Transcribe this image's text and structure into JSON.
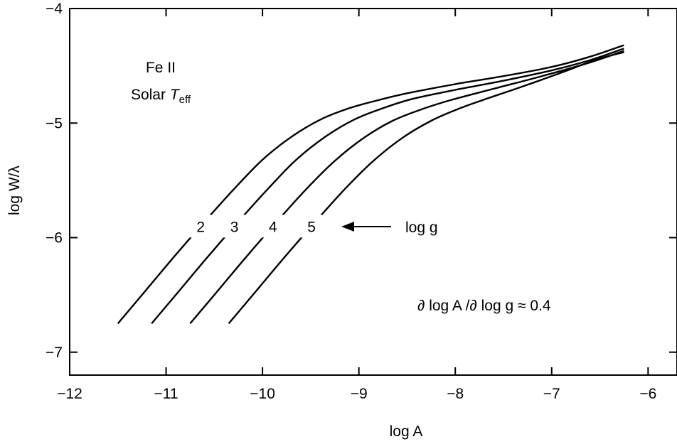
{
  "chart_data": {
    "type": "line",
    "title": "",
    "xlabel": "log A",
    "ylabel": "log W/λ",
    "xlim": [
      -12,
      -5.7
    ],
    "ylim": [
      -7.2,
      -4
    ],
    "xticks": [
      -12,
      -11,
      -10,
      -9,
      -8,
      -7,
      -6
    ],
    "xtick_labels": [
      "−12",
      "−11",
      "−10",
      "−9",
      "−8",
      "−7",
      "−6"
    ],
    "yticks": [
      -7,
      -6,
      -5,
      -4
    ],
    "ytick_labels": [
      "−7",
      "−6",
      "−5",
      "−4"
    ],
    "grid": false,
    "series": [
      {
        "name": "2",
        "x": [
          -11.5,
          -11.2,
          -10.9,
          -10.6,
          -10.3,
          -10.0,
          -9.7,
          -9.4,
          -9.1,
          -8.8,
          -8.5,
          -8.0,
          -7.5,
          -7.0,
          -6.6,
          -6.25
        ],
        "y": [
          -6.75,
          -6.45,
          -6.15,
          -5.86,
          -5.58,
          -5.32,
          -5.12,
          -4.97,
          -4.87,
          -4.8,
          -4.74,
          -4.66,
          -4.59,
          -4.51,
          -4.42,
          -4.32
        ]
      },
      {
        "name": "3",
        "x": [
          -11.15,
          -10.85,
          -10.55,
          -10.25,
          -9.95,
          -9.65,
          -9.35,
          -9.05,
          -8.75,
          -8.45,
          -8.0,
          -7.5,
          -7.0,
          -6.6,
          -6.25
        ],
        "y": [
          -6.75,
          -6.45,
          -6.15,
          -5.86,
          -5.58,
          -5.32,
          -5.12,
          -4.97,
          -4.87,
          -4.79,
          -4.71,
          -4.63,
          -4.54,
          -4.45,
          -4.35
        ]
      },
      {
        "name": "4",
        "x": [
          -10.75,
          -10.45,
          -10.15,
          -9.85,
          -9.55,
          -9.25,
          -8.95,
          -8.65,
          -8.35,
          -8.05,
          -7.6,
          -7.1,
          -6.6,
          -6.25
        ],
        "y": [
          -6.75,
          -6.45,
          -6.15,
          -5.86,
          -5.58,
          -5.33,
          -5.13,
          -4.98,
          -4.88,
          -4.8,
          -4.7,
          -4.59,
          -4.47,
          -4.37
        ]
      },
      {
        "name": "5",
        "x": [
          -10.35,
          -10.05,
          -9.75,
          -9.45,
          -9.15,
          -8.85,
          -8.55,
          -8.25,
          -7.95,
          -7.65,
          -7.3,
          -6.9,
          -6.55,
          -6.25
        ],
        "y": [
          -6.75,
          -6.45,
          -6.15,
          -5.86,
          -5.58,
          -5.33,
          -5.13,
          -4.98,
          -4.87,
          -4.78,
          -4.68,
          -4.56,
          -4.45,
          -4.38
        ]
      }
    ],
    "annotations": {
      "element": "Fe II",
      "temperature_prefix": "Solar ",
      "temperature_symbol": "T",
      "temperature_subscript": "eff",
      "arrow_label": "log g",
      "derivative": "∂ log A /∂ log g ≈ 0.4"
    }
  }
}
